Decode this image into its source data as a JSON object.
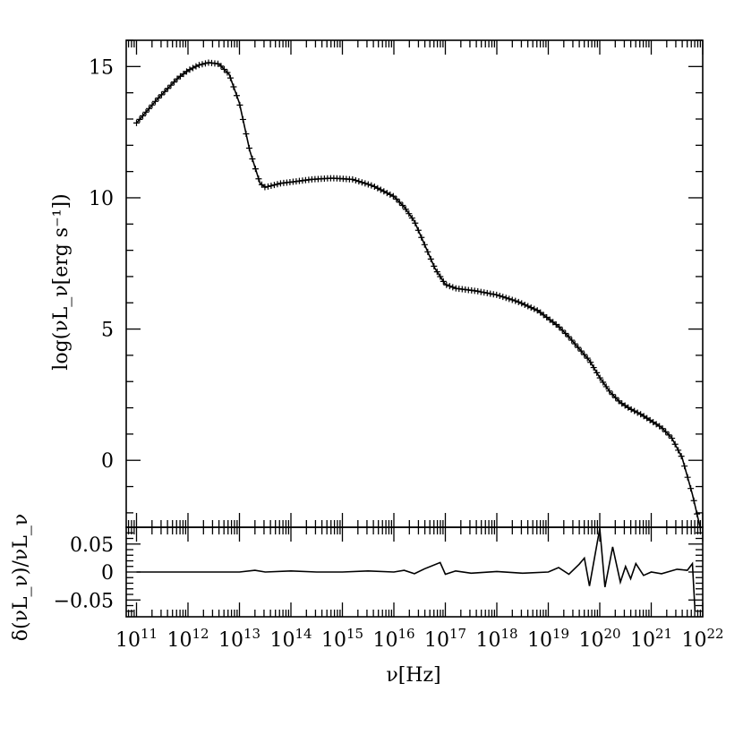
{
  "chart_data": [
    {
      "type": "line",
      "panel": "main",
      "xlabel": "ν[Hz]",
      "ylabel": "log(νL_ν[erg s⁻¹])",
      "xscale": "log",
      "xlim": [
        10.8,
        22.0
      ],
      "ylim": [
        -2.55,
        16.0
      ],
      "yticks": [
        0,
        5,
        10,
        15
      ],
      "ytick_labels": [
        "0",
        "5",
        "10",
        "15"
      ],
      "markers": "plus",
      "points": [
        [
          11.0,
          12.85
        ],
        [
          11.2,
          13.3
        ],
        [
          11.4,
          13.75
        ],
        [
          11.6,
          14.15
        ],
        [
          11.8,
          14.55
        ],
        [
          12.0,
          14.85
        ],
        [
          12.2,
          15.05
        ],
        [
          12.4,
          15.15
        ],
        [
          12.6,
          15.1
        ],
        [
          12.8,
          14.7
        ],
        [
          13.0,
          13.6
        ],
        [
          13.2,
          11.8
        ],
        [
          13.4,
          10.55
        ],
        [
          13.5,
          10.4
        ],
        [
          13.8,
          10.55
        ],
        [
          14.0,
          10.6
        ],
        [
          14.4,
          10.7
        ],
        [
          14.8,
          10.75
        ],
        [
          15.2,
          10.7
        ],
        [
          15.6,
          10.45
        ],
        [
          16.0,
          10.05
        ],
        [
          16.2,
          9.65
        ],
        [
          16.4,
          9.1
        ],
        [
          16.6,
          8.2
        ],
        [
          16.8,
          7.3
        ],
        [
          17.0,
          6.7
        ],
        [
          17.2,
          6.55
        ],
        [
          17.6,
          6.45
        ],
        [
          18.0,
          6.3
        ],
        [
          18.4,
          6.05
        ],
        [
          18.8,
          5.7
        ],
        [
          19.2,
          5.1
        ],
        [
          19.4,
          4.7
        ],
        [
          19.6,
          4.25
        ],
        [
          19.8,
          3.8
        ],
        [
          20.0,
          3.15
        ],
        [
          20.2,
          2.6
        ],
        [
          20.4,
          2.2
        ],
        [
          20.6,
          1.95
        ],
        [
          20.8,
          1.75
        ],
        [
          21.0,
          1.5
        ],
        [
          21.2,
          1.25
        ],
        [
          21.4,
          0.85
        ],
        [
          21.6,
          0.1
        ],
        [
          21.8,
          -1.3
        ],
        [
          21.95,
          -2.55
        ]
      ]
    },
    {
      "type": "line",
      "panel": "residual",
      "xlabel": "ν[Hz]",
      "ylabel": "δ(νL_ν)/νL_ν",
      "xscale": "log",
      "xlim": [
        10.8,
        22.0
      ],
      "ylim": [
        -0.08,
        0.08
      ],
      "yticks": [
        -0.05,
        0,
        0.05
      ],
      "ytick_labels": [
        "−0.05",
        "0",
        "0.05"
      ],
      "xtick_exponents": [
        "11",
        "12",
        "13",
        "14",
        "15",
        "16",
        "17",
        "18",
        "19",
        "20",
        "21",
        "22"
      ],
      "points": [
        [
          11.0,
          0.0
        ],
        [
          11.5,
          0.0
        ],
        [
          12.0,
          0.0
        ],
        [
          12.5,
          0.0
        ],
        [
          13.0,
          0.0
        ],
        [
          13.3,
          0.003
        ],
        [
          13.5,
          0.0
        ],
        [
          14.0,
          0.002
        ],
        [
          14.5,
          0.0
        ],
        [
          15.0,
          0.0
        ],
        [
          15.5,
          0.002
        ],
        [
          16.0,
          0.0
        ],
        [
          16.2,
          0.003
        ],
        [
          16.4,
          -0.003
        ],
        [
          16.6,
          0.006
        ],
        [
          16.9,
          0.017
        ],
        [
          17.0,
          -0.004
        ],
        [
          17.2,
          0.002
        ],
        [
          17.5,
          -0.002
        ],
        [
          18.0,
          0.001
        ],
        [
          18.5,
          -0.002
        ],
        [
          19.0,
          0.0
        ],
        [
          19.2,
          0.008
        ],
        [
          19.4,
          -0.004
        ],
        [
          19.6,
          0.014
        ],
        [
          19.7,
          0.025
        ],
        [
          19.8,
          -0.025
        ],
        [
          20.0,
          0.078
        ],
        [
          20.1,
          -0.027
        ],
        [
          20.25,
          0.045
        ],
        [
          20.4,
          -0.018
        ],
        [
          20.5,
          0.01
        ],
        [
          20.6,
          -0.012
        ],
        [
          20.7,
          0.015
        ],
        [
          20.85,
          -0.006
        ],
        [
          21.0,
          0.0
        ],
        [
          21.2,
          -0.003
        ],
        [
          21.5,
          0.005
        ],
        [
          21.7,
          0.003
        ],
        [
          21.8,
          0.015
        ],
        [
          21.85,
          -0.07
        ]
      ]
    }
  ]
}
